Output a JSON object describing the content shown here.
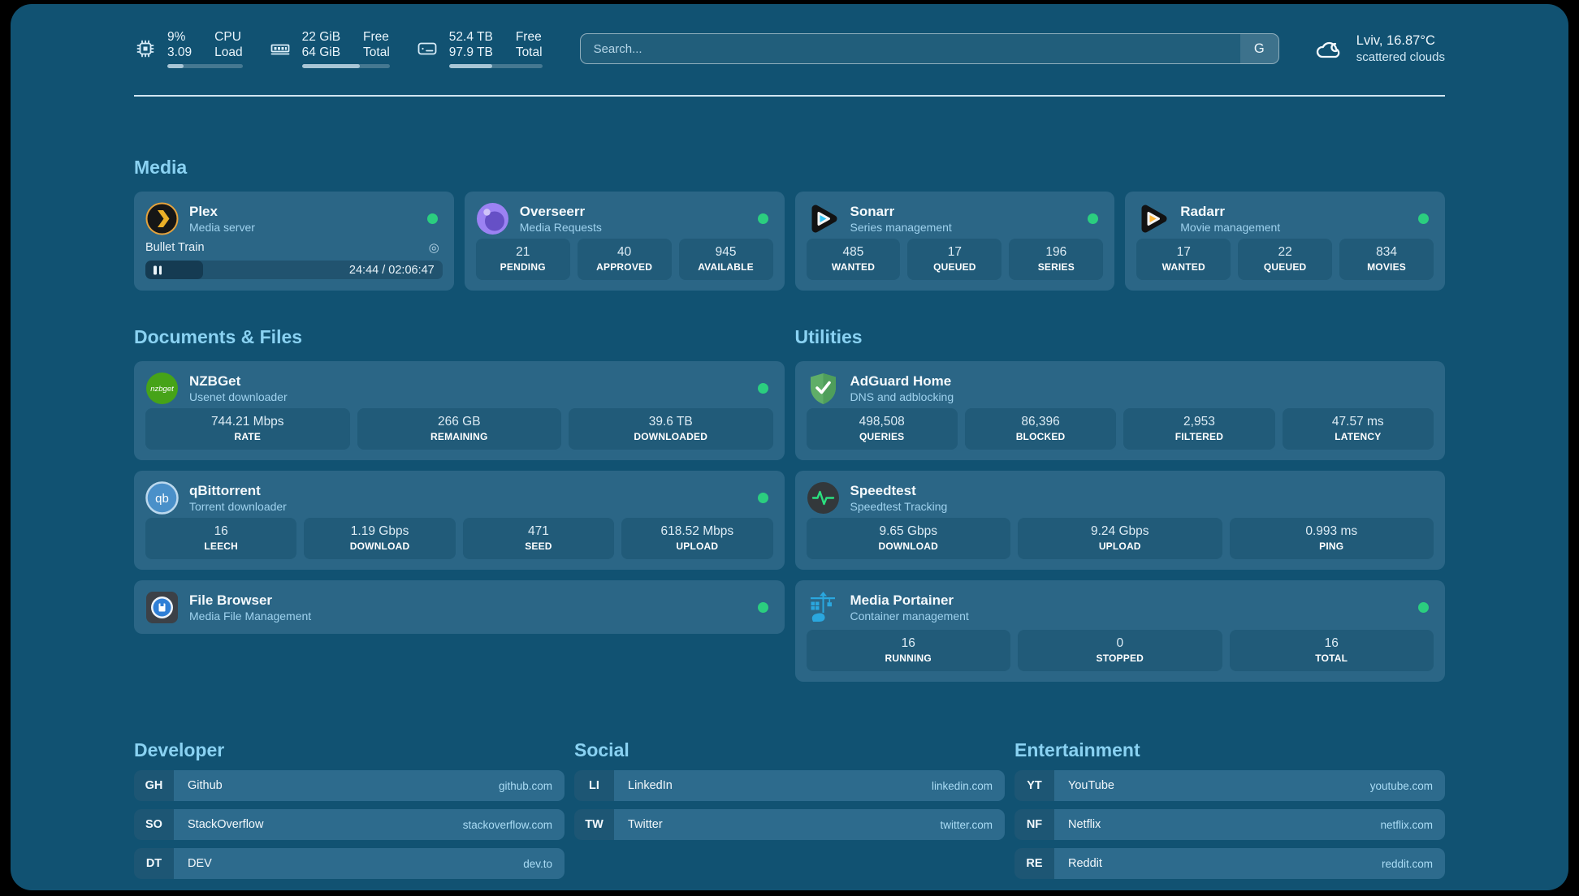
{
  "topbar": {
    "stats": [
      {
        "icon": "cpu-icon",
        "value1": "9%",
        "label1": "CPU",
        "value2": "3.09",
        "label2": "Load",
        "progress": 22
      },
      {
        "icon": "memory-icon",
        "value1": "22 GiB",
        "label1": "Free",
        "value2": "64 GiB",
        "label2": "Total",
        "progress": 66
      },
      {
        "icon": "disk-icon",
        "value1": "52.4 TB",
        "label1": "Free",
        "value2": "97.9 TB",
        "label2": "Total",
        "progress": 46
      }
    ],
    "search": {
      "placeholder": "Search...",
      "button_label": "G"
    },
    "weather": {
      "title": "Lviv, 16.87°C",
      "subtitle": "scattered clouds"
    }
  },
  "sections": {
    "media": {
      "heading": "Media",
      "cards": [
        {
          "title": "Plex",
          "subtitle": "Media server",
          "status": "online",
          "now_playing": {
            "title": "Bullet Train",
            "time": "24:44 / 02:06:47",
            "progress": 19.5
          }
        },
        {
          "title": "Overseerr",
          "subtitle": "Media Requests",
          "status": "online",
          "stats": [
            {
              "value": "21",
              "label": "PENDING"
            },
            {
              "value": "40",
              "label": "APPROVED"
            },
            {
              "value": "945",
              "label": "AVAILABLE"
            }
          ]
        },
        {
          "title": "Sonarr",
          "subtitle": "Series management",
          "status": "online",
          "stats": [
            {
              "value": "485",
              "label": "WANTED"
            },
            {
              "value": "17",
              "label": "QUEUED"
            },
            {
              "value": "196",
              "label": "SERIES"
            }
          ]
        },
        {
          "title": "Radarr",
          "subtitle": "Movie management",
          "status": "online",
          "stats": [
            {
              "value": "17",
              "label": "WANTED"
            },
            {
              "value": "22",
              "label": "QUEUED"
            },
            {
              "value": "834",
              "label": "MOVIES"
            }
          ]
        }
      ]
    },
    "documents": {
      "heading": "Documents & Files",
      "cards": [
        {
          "title": "NZBGet",
          "subtitle": "Usenet downloader",
          "icon_text": "nzbget",
          "status": "online",
          "stats": [
            {
              "value": "744.21 Mbps",
              "label": "RATE"
            },
            {
              "value": "266 GB",
              "label": "REMAINING"
            },
            {
              "value": "39.6 TB",
              "label": "DOWNLOADED"
            }
          ]
        },
        {
          "title": "qBittorrent",
          "subtitle": "Torrent downloader",
          "icon_text": "qb",
          "status": "online",
          "stats": [
            {
              "value": "16",
              "label": "LEECH"
            },
            {
              "value": "1.19 Gbps",
              "label": "DOWNLOAD"
            },
            {
              "value": "471",
              "label": "SEED"
            },
            {
              "value": "618.52 Mbps",
              "label": "UPLOAD"
            }
          ]
        },
        {
          "title": "File Browser",
          "subtitle": "Media File Management",
          "status": "online"
        }
      ]
    },
    "utilities": {
      "heading": "Utilities",
      "cards": [
        {
          "title": "AdGuard Home",
          "subtitle": "DNS and adblocking",
          "stats": [
            {
              "value": "498,508",
              "label": "QUERIES"
            },
            {
              "value": "86,396",
              "label": "BLOCKED"
            },
            {
              "value": "2,953",
              "label": "FILTERED"
            },
            {
              "value": "47.57 ms",
              "label": "LATENCY"
            }
          ]
        },
        {
          "title": "Speedtest",
          "subtitle": "Speedtest Tracking",
          "stats": [
            {
              "value": "9.65 Gbps",
              "label": "DOWNLOAD"
            },
            {
              "value": "9.24 Gbps",
              "label": "UPLOAD"
            },
            {
              "value": "0.993 ms",
              "label": "PING"
            }
          ]
        },
        {
          "title": "Media Portainer",
          "subtitle": "Container management",
          "status": "online",
          "stats": [
            {
              "value": "16",
              "label": "RUNNING"
            },
            {
              "value": "0",
              "label": "STOPPED"
            },
            {
              "value": "16",
              "label": "TOTAL"
            }
          ]
        }
      ]
    },
    "bookmarks": [
      {
        "heading": "Developer",
        "items": [
          {
            "abbr": "GH",
            "name": "Github",
            "url": "github.com"
          },
          {
            "abbr": "SO",
            "name": "StackOverflow",
            "url": "stackoverflow.com"
          },
          {
            "abbr": "DT",
            "name": "DEV",
            "url": "dev.to"
          }
        ]
      },
      {
        "heading": "Social",
        "items": [
          {
            "abbr": "LI",
            "name": "LinkedIn",
            "url": "linkedin.com"
          },
          {
            "abbr": "TW",
            "name": "Twitter",
            "url": "twitter.com"
          }
        ]
      },
      {
        "heading": "Entertainment",
        "items": [
          {
            "abbr": "YT",
            "name": "YouTube",
            "url": "youtube.com"
          },
          {
            "abbr": "NF",
            "name": "Netflix",
            "url": "netflix.com"
          },
          {
            "abbr": "RE",
            "name": "Reddit",
            "url": "reddit.com"
          }
        ]
      }
    ]
  },
  "colors": {
    "background": "#115272",
    "card": "#2b6686",
    "stat_box": "#215b79",
    "heading_text": "#8ad2f2",
    "status_online": "#2bce7f",
    "plex_gold": "#ebaf27",
    "sonarr_cyan": "#35c5f4",
    "radarr_yellow": "#ffb93c",
    "nzbget_green": "#46a318",
    "adguard_green": "#5fae68",
    "portainer_blue": "#2aa7df",
    "speedtest_pulse": "#2be080"
  }
}
